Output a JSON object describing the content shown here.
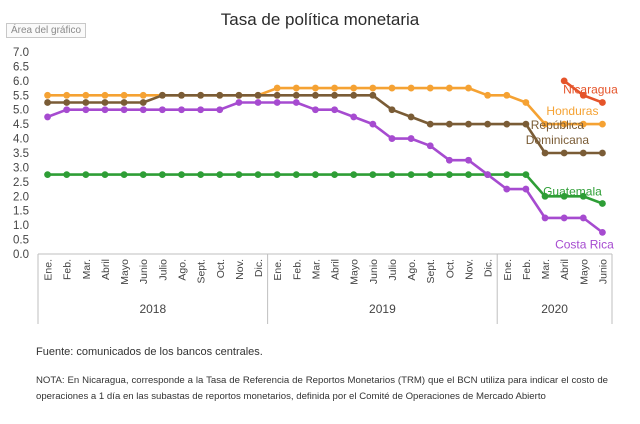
{
  "area_label": "Área del gráfico",
  "source": "Fuente: comunicados de los bancos centrales.",
  "note": "NOTA: En Nicaragua, corresponde a la Tasa de Referencia de Reportos Monetarios (TRM) que el BCN utiliza para indicar el costo de operaciones a 1 día en las subastas de reportos monetarios, definida por el Comité de Operaciones de Mercado Abierto",
  "chart_data": {
    "type": "line",
    "title": "Tasa de política monetaria",
    "xlabel": "",
    "ylabel": "",
    "ylim": [
      0,
      7
    ],
    "ytick_labels": [
      "0.0",
      "0.5",
      "1.0",
      "1.5",
      "2.0",
      "2.5",
      "3.0",
      "3.5",
      "4.0",
      "4.5",
      "5.0",
      "5.5",
      "6.0",
      "6.5",
      "7.0"
    ],
    "grid": false,
    "categories": [
      "Ene.",
      "Feb.",
      "Mar.",
      "Abril",
      "Mayo",
      "Junio",
      "Julio",
      "Ago.",
      "Sept.",
      "Oct.",
      "Nov.",
      "Dic.",
      "Ene.",
      "Feb.",
      "Mar.",
      "Abril",
      "Mayo",
      "Junio",
      "Julio",
      "Ago.",
      "Sept.",
      "Oct.",
      "Nov.",
      "Dic.",
      "Ene.",
      "Feb.",
      "Mar.",
      "Abril",
      "Mayo",
      "Junio"
    ],
    "years": [
      {
        "label": "2018",
        "start": 0,
        "end": 11
      },
      {
        "label": "2019",
        "start": 12,
        "end": 23
      },
      {
        "label": "2020",
        "start": 24,
        "end": 29
      }
    ],
    "series": [
      {
        "name": "Nicaragua",
        "color": "#e5542a",
        "values": [
          null,
          null,
          null,
          null,
          null,
          null,
          null,
          null,
          null,
          null,
          null,
          null,
          null,
          null,
          null,
          null,
          null,
          null,
          null,
          null,
          null,
          null,
          null,
          null,
          null,
          null,
          null,
          6.0,
          5.5,
          5.25
        ]
      },
      {
        "name": "Honduras",
        "color": "#f5a233",
        "values": [
          5.5,
          5.5,
          5.5,
          5.5,
          5.5,
          5.5,
          5.5,
          5.5,
          5.5,
          5.5,
          5.5,
          5.5,
          5.75,
          5.75,
          5.75,
          5.75,
          5.75,
          5.75,
          5.75,
          5.75,
          5.75,
          5.75,
          5.75,
          5.5,
          5.5,
          5.25,
          4.5,
          4.5,
          4.5,
          4.5
        ]
      },
      {
        "name": "República Dominicana",
        "label_lines": [
          "República",
          "Dominicana"
        ],
        "color": "#7a5c36",
        "values": [
          5.25,
          5.25,
          5.25,
          5.25,
          5.25,
          5.25,
          5.5,
          5.5,
          5.5,
          5.5,
          5.5,
          5.5,
          5.5,
          5.5,
          5.5,
          5.5,
          5.5,
          5.5,
          5.0,
          4.75,
          4.5,
          4.5,
          4.5,
          4.5,
          4.5,
          4.5,
          3.5,
          3.5,
          3.5,
          3.5
        ]
      },
      {
        "name": "Guatemala",
        "color": "#2e9e36",
        "values": [
          2.75,
          2.75,
          2.75,
          2.75,
          2.75,
          2.75,
          2.75,
          2.75,
          2.75,
          2.75,
          2.75,
          2.75,
          2.75,
          2.75,
          2.75,
          2.75,
          2.75,
          2.75,
          2.75,
          2.75,
          2.75,
          2.75,
          2.75,
          2.75,
          2.75,
          2.75,
          2.0,
          2.0,
          2.0,
          1.75
        ]
      },
      {
        "name": "Costa Rica",
        "color": "#a64bd0",
        "values": [
          4.75,
          5.0,
          5.0,
          5.0,
          5.0,
          5.0,
          5.0,
          5.0,
          5.0,
          5.0,
          5.25,
          5.25,
          5.25,
          5.25,
          5.0,
          5.0,
          4.75,
          4.5,
          4.0,
          4.0,
          3.75,
          3.25,
          3.25,
          2.75,
          2.25,
          2.25,
          1.25,
          1.25,
          1.25,
          0.75
        ]
      }
    ]
  }
}
